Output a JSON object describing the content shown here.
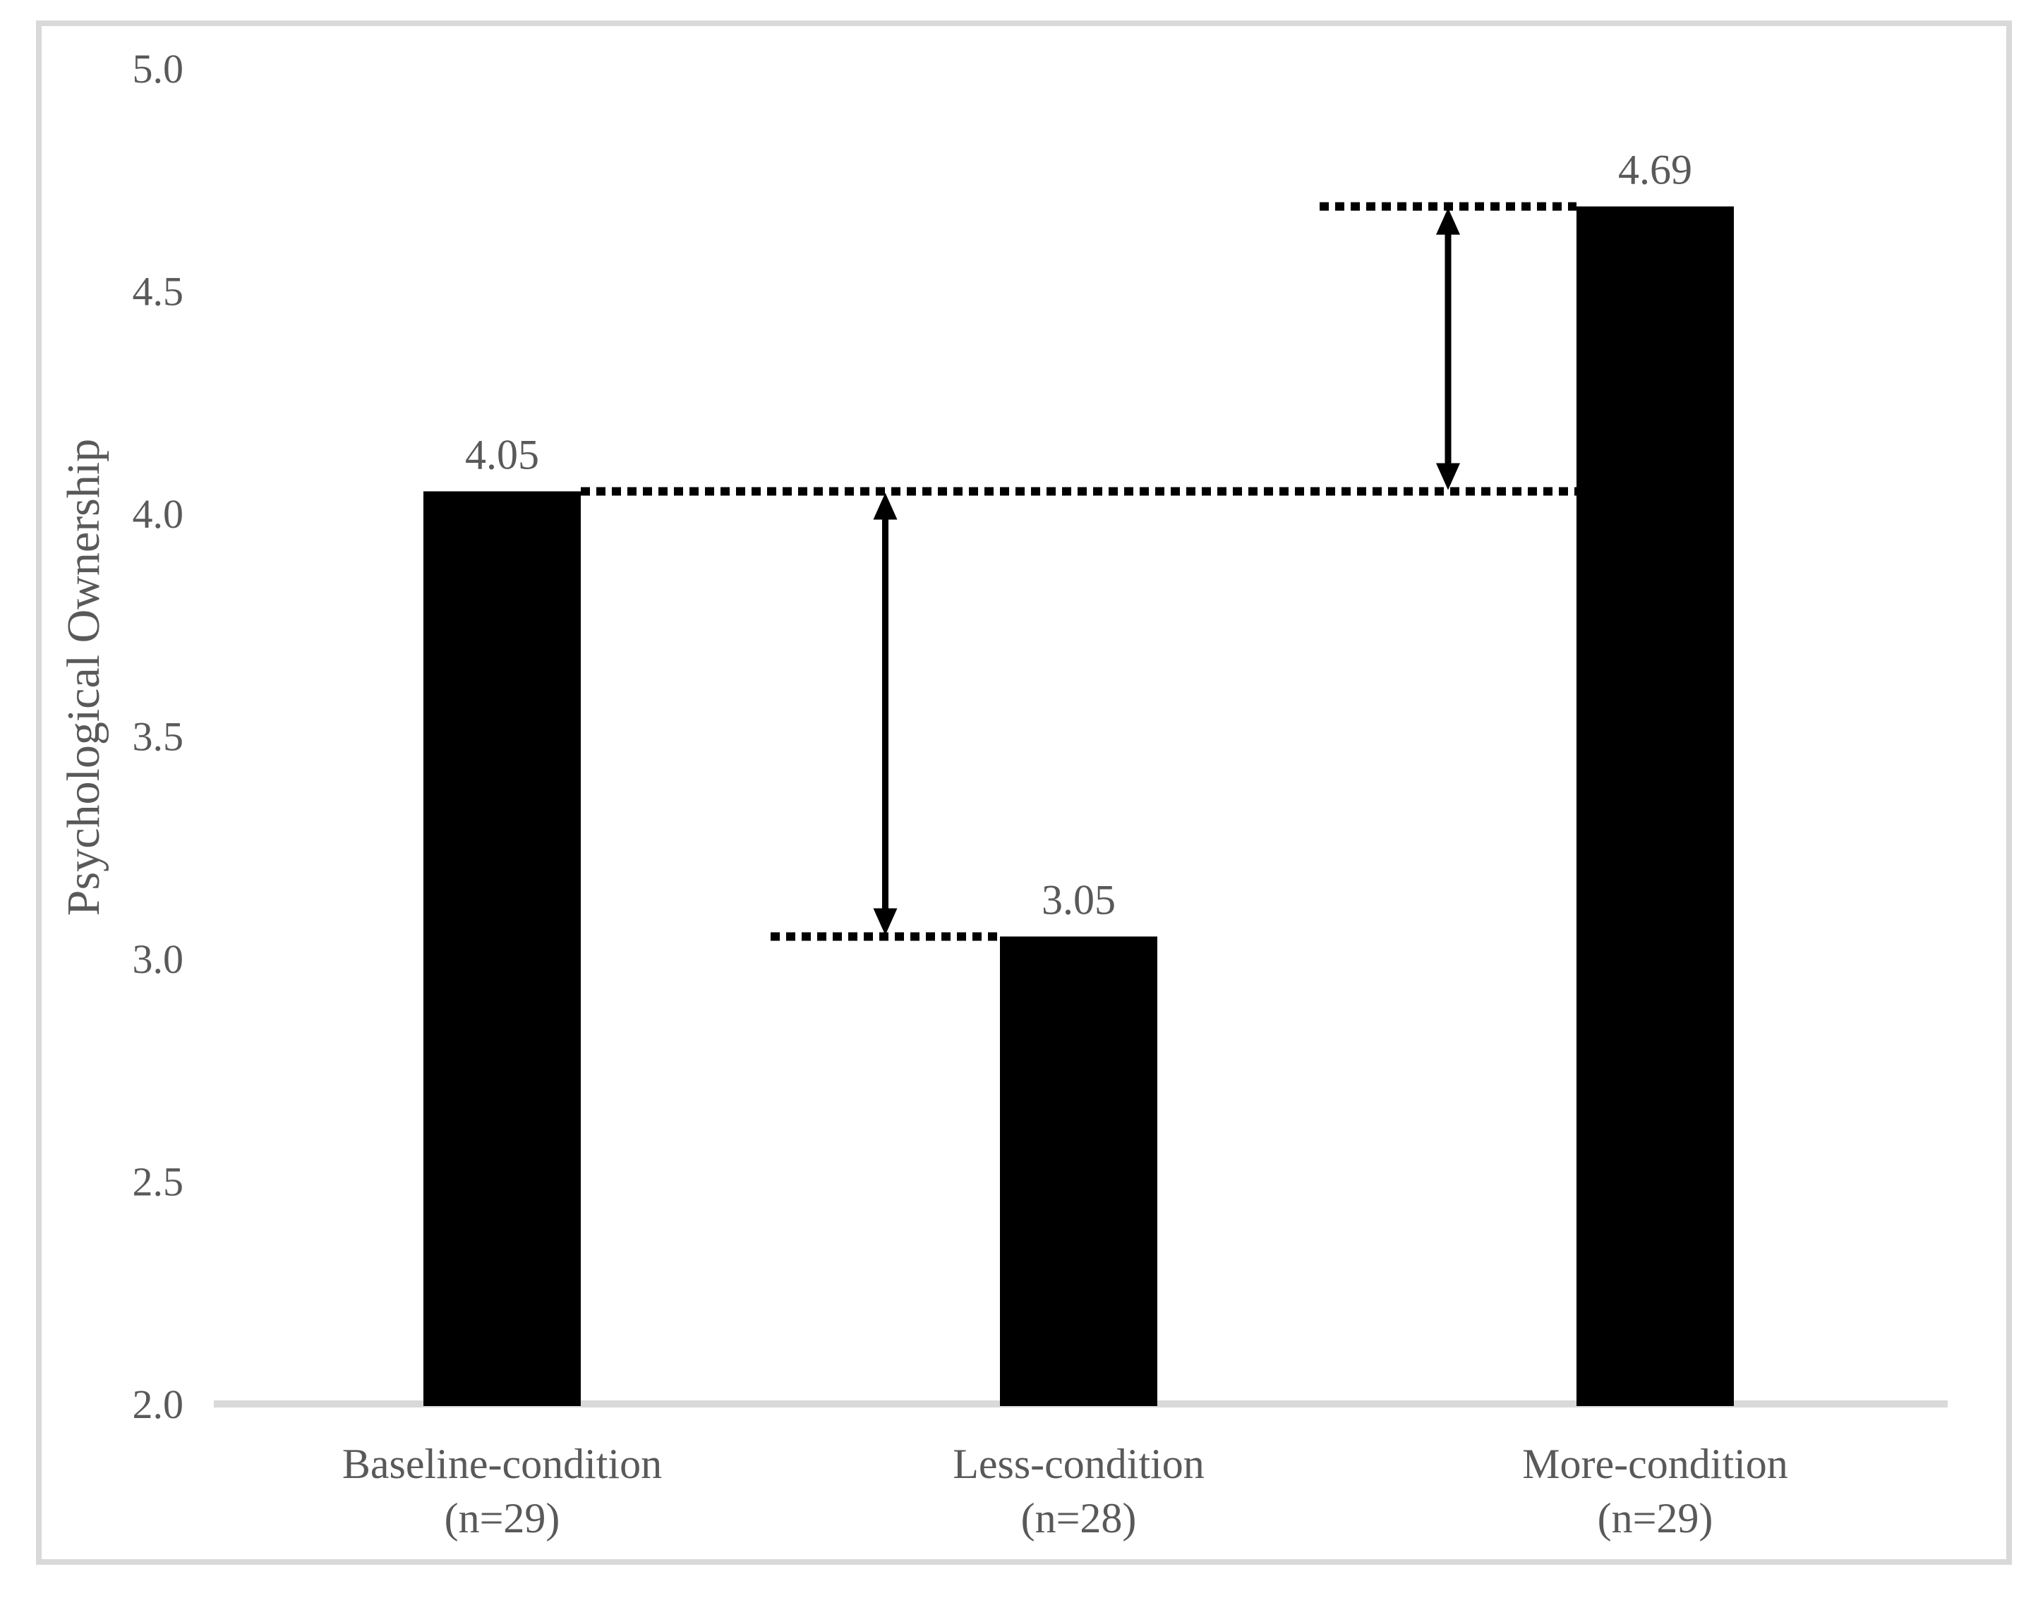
{
  "figure": {
    "background_color": "#ffffff",
    "border_color": "#d9d9d9"
  },
  "chart_data": {
    "type": "bar",
    "title": "",
    "xlabel": "",
    "ylabel": "Psychological Ownership",
    "ylim": [
      2.0,
      5.0
    ],
    "ytick_step": 0.5,
    "yticks": [
      {
        "value": 2.0,
        "label": "2.0"
      },
      {
        "value": 2.5,
        "label": "2.5"
      },
      {
        "value": 3.0,
        "label": "3.0"
      },
      {
        "value": 3.5,
        "label": "3.5"
      },
      {
        "value": 4.0,
        "label": "4.0"
      },
      {
        "value": 4.5,
        "label": "4.5"
      },
      {
        "value": 5.0,
        "label": "5.0"
      }
    ],
    "grid": false,
    "legend_position": "none",
    "categories": [
      "Baseline-condition",
      "Less-condition",
      "More-condition"
    ],
    "category_sublabels": [
      "(n=29)",
      "(n=28)",
      "(n=29)"
    ],
    "values": [
      4.05,
      3.05,
      4.69
    ],
    "value_labels": [
      "4.05",
      "3.05",
      "4.69"
    ],
    "bar_color": "#000000",
    "text_color": "#595959",
    "axis_line_color": "#d9d9d9",
    "annotation_color": "#000000",
    "annotations": {
      "dotted_lines": [
        {
          "level": 4.05,
          "from_bar": 0,
          "from_edge": "right",
          "to_bar": 2,
          "to_edge": "left"
        },
        {
          "level": 3.05,
          "from_bar": null,
          "from_edge": null,
          "to_bar": 1,
          "to_edge": "left"
        },
        {
          "level": 4.69,
          "from_bar": null,
          "from_edge": null,
          "to_bar": 2,
          "to_edge": "left"
        }
      ],
      "difference_arrows": [
        {
          "top_level": 4.05,
          "bottom_level": 3.05,
          "at_dotted_line": 1
        },
        {
          "top_level": 4.69,
          "bottom_level": 4.05,
          "at_dotted_line": 2
        }
      ]
    }
  }
}
